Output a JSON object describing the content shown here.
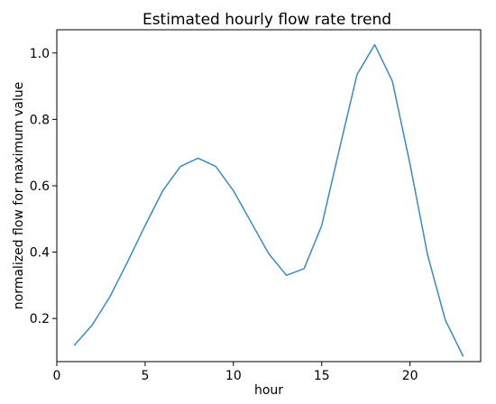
{
  "chart_data": {
    "type": "line",
    "title": "Estimated hourly flow rate trend",
    "xlabel": "hour",
    "ylabel": "normalized flow for maximum value",
    "xlim": [
      0,
      24
    ],
    "ylim": [
      0.07,
      1.07
    ],
    "x_ticks": [
      0,
      5,
      10,
      15,
      20
    ],
    "y_ticks": [
      0.2,
      0.4,
      0.6,
      0.8,
      1.0
    ],
    "x_tick_labels": [
      "0",
      "5",
      "10",
      "15",
      "20"
    ],
    "y_tick_labels": [
      "0.2",
      "0.4",
      "0.6",
      "0.8",
      "1.0"
    ],
    "grid": false,
    "series": [
      {
        "color": "#3b8bc2",
        "x": [
          1,
          2,
          3,
          4,
          5,
          6,
          7,
          8,
          9,
          10,
          11,
          12,
          13,
          14,
          15,
          16,
          17,
          18,
          19,
          20,
          21,
          22,
          23
        ],
        "y": [
          0.12,
          0.18,
          0.265,
          0.37,
          0.48,
          0.585,
          0.658,
          0.683,
          0.658,
          0.585,
          0.49,
          0.395,
          0.33,
          0.35,
          0.48,
          0.71,
          0.935,
          1.025,
          0.915,
          0.665,
          0.39,
          0.195,
          0.087
        ]
      }
    ]
  }
}
